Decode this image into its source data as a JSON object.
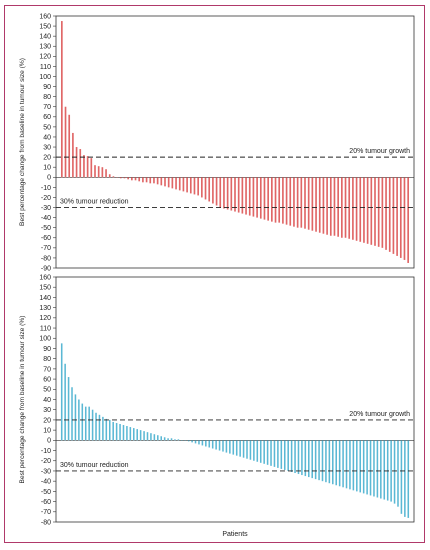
{
  "chart_data": [
    {
      "type": "bar",
      "ylabel": "Best percentage change from baseline in tumour size (%)",
      "ylim": [
        -90,
        160
      ],
      "ytick_step": 10,
      "bar_color": "#e06666",
      "thresholds": [
        {
          "value": 20,
          "label": "20% tumour growth"
        },
        {
          "value": -30,
          "label": "30% tumour reduction"
        }
      ],
      "values": [
        155,
        70,
        62,
        44,
        30,
        28,
        22,
        21,
        19,
        12,
        11,
        10,
        8,
        3,
        1,
        0,
        -1,
        -1,
        -2,
        -3,
        -3,
        -4,
        -5,
        -5,
        -6,
        -6,
        -7,
        -8,
        -9,
        -10,
        -11,
        -12,
        -13,
        -14,
        -15,
        -16,
        -17,
        -18,
        -20,
        -22,
        -24,
        -26,
        -28,
        -30,
        -31,
        -32,
        -33,
        -34,
        -35,
        -36,
        -37,
        -38,
        -39,
        -40,
        -41,
        -42,
        -43,
        -44,
        -45,
        -45,
        -46,
        -47,
        -48,
        -49,
        -50,
        -50,
        -51,
        -52,
        -53,
        -54,
        -55,
        -56,
        -57,
        -58,
        -58,
        -59,
        -60,
        -60,
        -61,
        -62,
        -63,
        -64,
        -65,
        -66,
        -67,
        -68,
        -69,
        -70,
        -72,
        -74,
        -76,
        -78,
        -80,
        -82,
        -85
      ]
    },
    {
      "type": "bar",
      "ylabel": "Best percentage change from baseline in tumour size (%)",
      "xlabel": "Patients",
      "ylim": [
        -80,
        160
      ],
      "ytick_step": 10,
      "bar_color": "#5bb8d4",
      "thresholds": [
        {
          "value": 20,
          "label": "20% tumour growth"
        },
        {
          "value": -30,
          "label": "30% tumour reduction"
        }
      ],
      "values": [
        95,
        75,
        62,
        52,
        45,
        40,
        36,
        33,
        33,
        30,
        27,
        25,
        23,
        21,
        20,
        18,
        17,
        16,
        15,
        14,
        13,
        12,
        11,
        10,
        9,
        8,
        7,
        6,
        5,
        4,
        3,
        2,
        2,
        1,
        1,
        0,
        0,
        -1,
        -2,
        -3,
        -4,
        -5,
        -6,
        -7,
        -8,
        -9,
        -10,
        -11,
        -12,
        -13,
        -14,
        -15,
        -16,
        -17,
        -18,
        -19,
        -20,
        -21,
        -22,
        -23,
        -24,
        -25,
        -26,
        -27,
        -28,
        -29,
        -30,
        -31,
        -32,
        -33,
        -34,
        -35,
        -36,
        -37,
        -38,
        -39,
        -40,
        -41,
        -42,
        -43,
        -44,
        -45,
        -46,
        -47,
        -48,
        -49,
        -50,
        -51,
        -52,
        -53,
        -54,
        -55,
        -56,
        -57,
        -58,
        -59,
        -60,
        -62,
        -65,
        -72,
        -75,
        -76
      ]
    }
  ]
}
